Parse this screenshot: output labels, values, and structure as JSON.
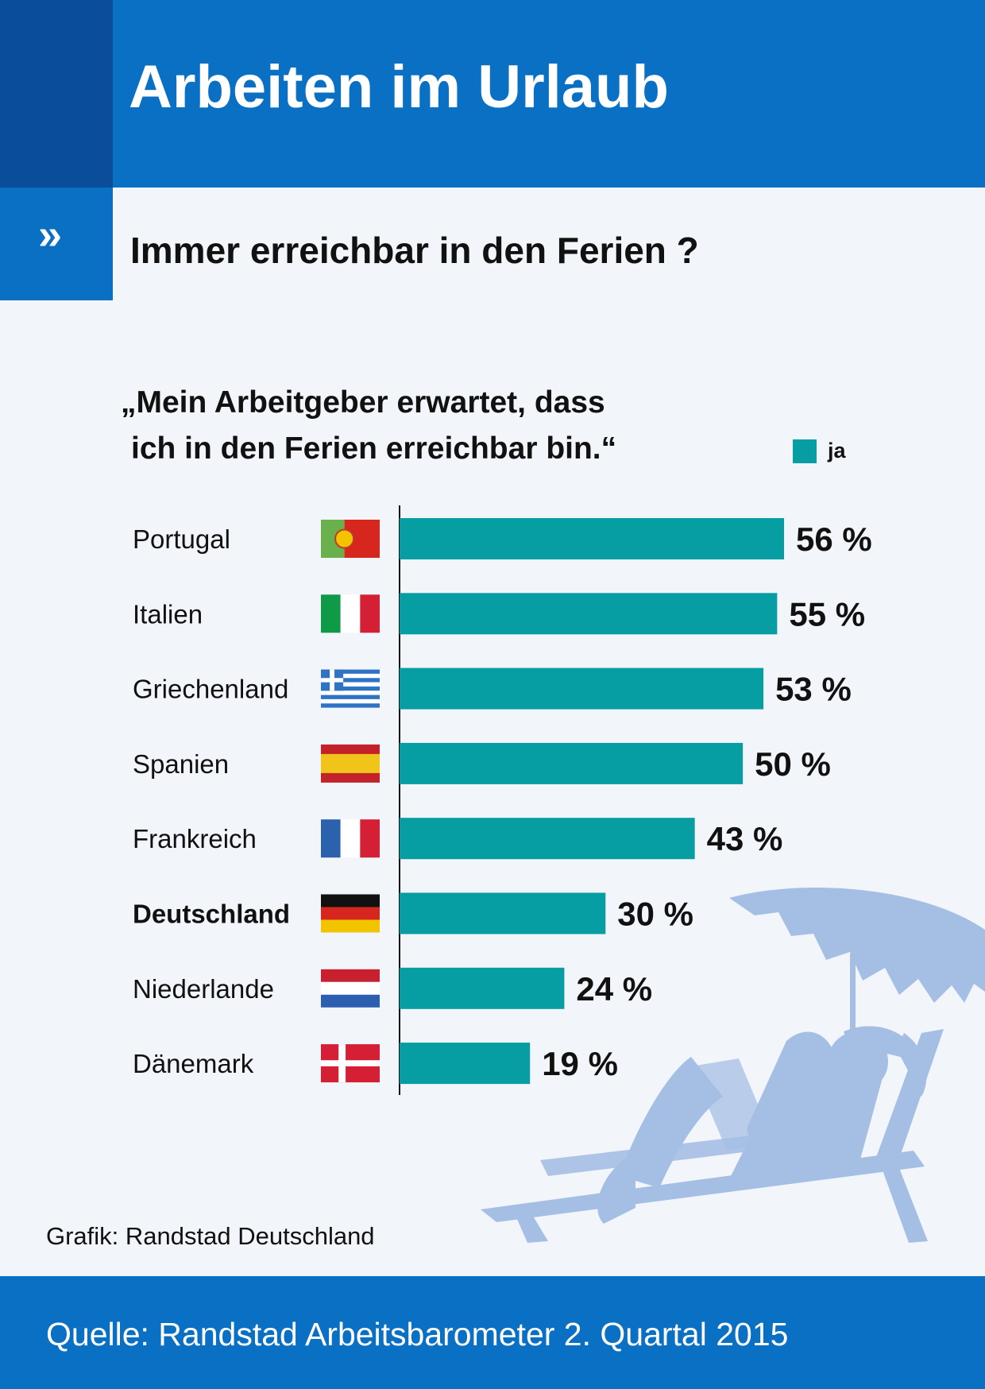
{
  "header": {
    "title": "Arbeiten im Urlaub",
    "subtitle_icon": "»",
    "subtitle": "Immer erreichbar in den Ferien ?"
  },
  "chart_data": {
    "type": "bar",
    "orientation": "horizontal",
    "title": "„Mein Arbeitgeber erwartet, dass ich in den Ferien erreichbar bin.“",
    "title_lines": [
      "„Mein Arbeitgeber erwartet, dass",
      "ich in den Ferien erreichbar bin.“"
    ],
    "categories": [
      "Portugal",
      "Italien",
      "Griechenland",
      "Spanien",
      "Frankreich",
      "Deutschland",
      "Niederlande",
      "Dänemark"
    ],
    "flags": [
      "portugal-flag",
      "italy-flag",
      "greece-flag",
      "spain-flag",
      "france-flag",
      "germany-flag",
      "netherlands-flag",
      "denmark-flag"
    ],
    "highlight": "Deutschland",
    "series": [
      {
        "name": "ja",
        "values": [
          56,
          55,
          53,
          50,
          43,
          30,
          24,
          19
        ],
        "color": "#069da3"
      }
    ],
    "value_labels": [
      "56 %",
      "55 %",
      "53 %",
      "50 %",
      "43 %",
      "30 %",
      "24 %",
      "19 %"
    ],
    "xlim": [
      0,
      56
    ],
    "legend_position": "top-right",
    "grid": false
  },
  "decoration": {
    "illustration": "woman-on-deckchair-with-laptop-under-parasol",
    "illustration_color": "#a5bfe4"
  },
  "colors": {
    "header_blue": "#0a70c4",
    "header_dark_blue": "#0a4d98",
    "background": "#f2f5fa",
    "bar": "#069da3"
  },
  "credit": "Grafik: Randstad Deutschland",
  "footer": {
    "source": "Quelle: Randstad Arbeitsbarometer 2. Quartal 2015"
  }
}
